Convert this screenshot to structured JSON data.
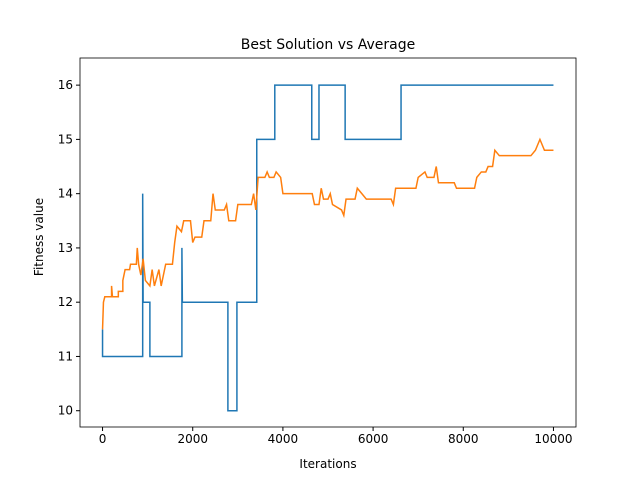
{
  "chart_data": {
    "type": "line",
    "title": "Best Solution vs Average",
    "xlabel": "Iterations",
    "ylabel": "Fitness value",
    "xlim": [
      -500,
      10500
    ],
    "ylim": [
      9.7,
      16.5
    ],
    "xticks": [
      0,
      2000,
      4000,
      6000,
      8000,
      10000
    ],
    "yticks": [
      10,
      11,
      12,
      13,
      14,
      15,
      16
    ],
    "series": [
      {
        "color": "#1f77b4",
        "x": [
          0,
          0,
          890,
          890,
          900,
          1050,
          1050,
          1760,
          1760,
          1770,
          2780,
          2780,
          2980,
          2980,
          3420,
          3420,
          3820,
          3820,
          4640,
          4640,
          4800,
          4800,
          5380,
          5380,
          6620,
          6620,
          10000
        ],
        "values": [
          11.5,
          11,
          11,
          14,
          12,
          12,
          11,
          11,
          13,
          12,
          12,
          10,
          10,
          12,
          12,
          15,
          15,
          16,
          16,
          15,
          15,
          16,
          16,
          15,
          15,
          16,
          16
        ]
      },
      {
        "color": "#ff7f0e",
        "x": [
          0,
          20,
          50,
          200,
          200,
          220,
          350,
          350,
          450,
          450,
          500,
          600,
          620,
          750,
          770,
          800,
          850,
          900,
          950,
          1050,
          1100,
          1150,
          1250,
          1300,
          1400,
          1550,
          1600,
          1650,
          1750,
          1800,
          1950,
          2000,
          2050,
          2200,
          2250,
          2400,
          2450,
          2500,
          2700,
          2750,
          2800,
          2950,
          3000,
          3300,
          3350,
          3400,
          3450,
          3600,
          3650,
          3700,
          3800,
          3850,
          3950,
          4000,
          4650,
          4700,
          4800,
          4850,
          4900,
          5000,
          5050,
          5100,
          5300,
          5350,
          5400,
          5600,
          5650,
          5750,
          5850,
          6400,
          6450,
          6500,
          6600,
          6950,
          7000,
          7150,
          7200,
          7350,
          7400,
          7450,
          7800,
          7850,
          8250,
          8300,
          8400,
          8500,
          8550,
          8650,
          8700,
          8800,
          9500,
          9600,
          9700,
          9800,
          10000
        ],
        "values": [
          11.5,
          12,
          12.1,
          12.1,
          12.3,
          12.1,
          12.1,
          12.2,
          12.2,
          12.4,
          12.6,
          12.6,
          12.7,
          12.7,
          13,
          12.7,
          12.5,
          12.8,
          12.4,
          12.3,
          12.6,
          12.3,
          12.6,
          12.3,
          12.7,
          12.7,
          13.1,
          13.4,
          13.3,
          13.5,
          13.5,
          13.1,
          13.2,
          13.2,
          13.5,
          13.5,
          14,
          13.7,
          13.7,
          13.8,
          13.5,
          13.5,
          13.8,
          13.8,
          14,
          13.7,
          14.3,
          14.3,
          14.4,
          14.3,
          14.3,
          14.4,
          14.3,
          14,
          14,
          13.8,
          13.8,
          14.1,
          13.9,
          13.9,
          14,
          13.8,
          13.7,
          13.6,
          13.9,
          13.9,
          14.1,
          14,
          13.9,
          13.9,
          13.8,
          14.1,
          14.1,
          14.1,
          14.3,
          14.4,
          14.3,
          14.3,
          14.5,
          14.2,
          14.2,
          14.1,
          14.1,
          14.3,
          14.4,
          14.4,
          14.5,
          14.5,
          14.8,
          14.7,
          14.7,
          14.8,
          15,
          14.8,
          14.8
        ]
      }
    ]
  }
}
